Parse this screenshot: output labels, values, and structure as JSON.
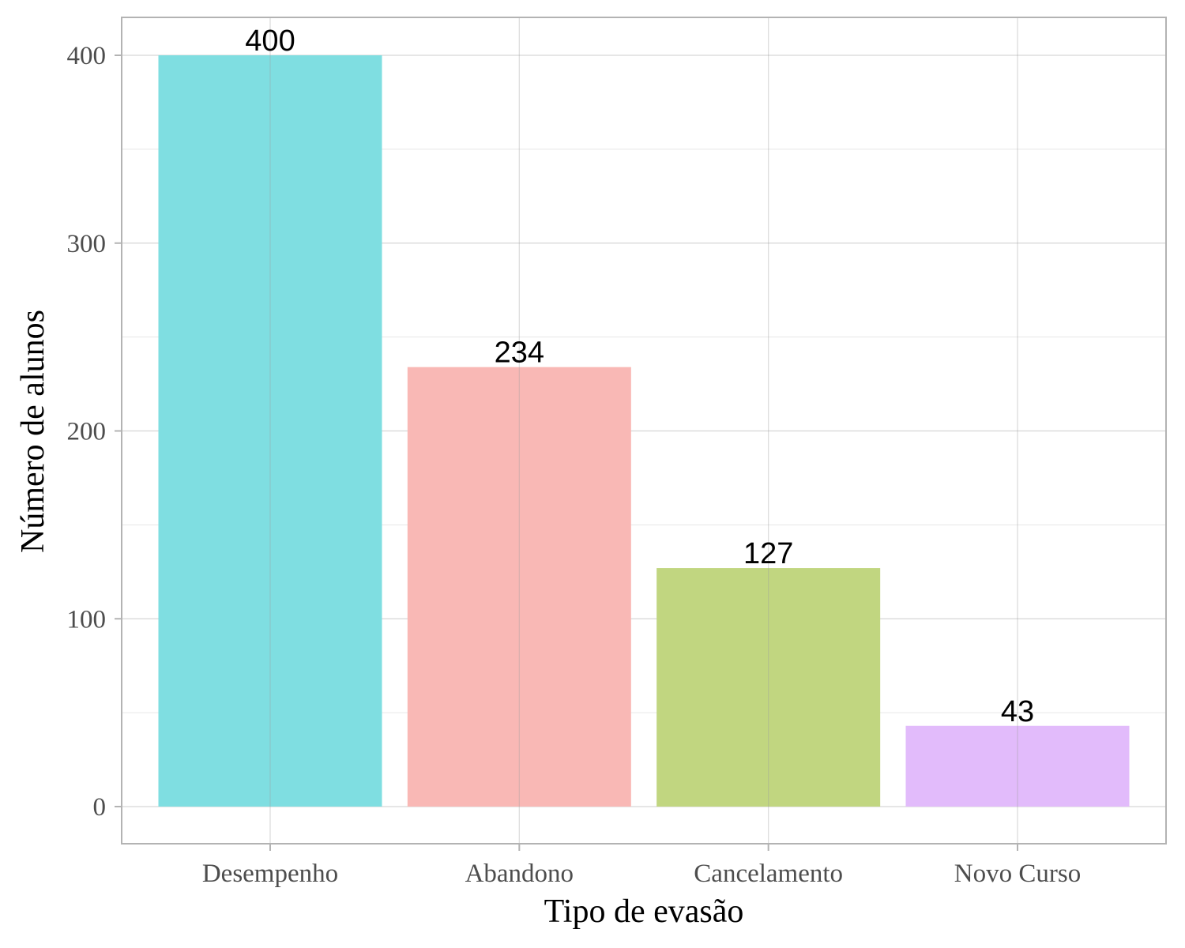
{
  "chart_data": {
    "type": "bar",
    "title": "",
    "xlabel": "Tipo de evasão",
    "ylabel": "Número de alunos",
    "categories": [
      "Desempenho",
      "Abandono",
      "Cancelamento",
      "Novo Curso"
    ],
    "values": [
      400,
      234,
      127,
      43
    ],
    "data_labels": [
      "400",
      "234",
      "127",
      "43"
    ],
    "colors": [
      "#7FDEE1",
      "#F9B8B5",
      "#C1D680",
      "#E2BBFB"
    ],
    "ylim": [
      0,
      420
    ],
    "yticks": [
      0,
      100,
      200,
      300,
      400
    ],
    "ytick_labels": [
      "0",
      "100",
      "200",
      "300",
      "400"
    ],
    "grid": true,
    "legend": "none"
  }
}
